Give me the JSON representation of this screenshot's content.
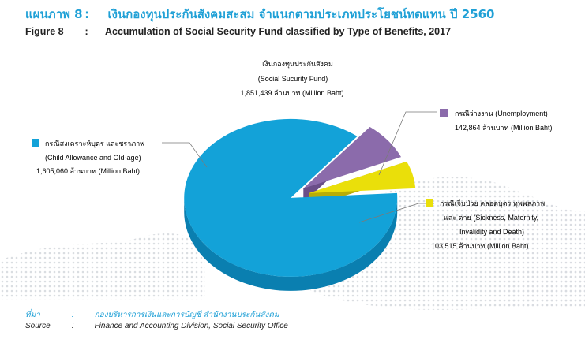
{
  "figure": {
    "th_label": "แผนภาพ 8",
    "th_colon": ":",
    "th_title": "เงินกองทุนประกันสังคมสะสม จำแนกตามประเภทประโยชน์ทดแทน ปี 2560",
    "en_label": "Figure 8",
    "en_colon": ":",
    "en_title": "Accumulation of Social Security Fund classified by Type of Benefits, 2017"
  },
  "chart_data": {
    "type": "pie",
    "style": "3d-exploded",
    "total": {
      "line1": "เงินกองทุนประกันสังคม",
      "line2": "(Social Sucurity Fund)",
      "line3": "1,851,439 ล้านบาท (Million Baht)",
      "value": 1851439
    },
    "unit": "Million Baht",
    "slices": [
      {
        "key": "child_old_age",
        "th": "กรณีสงเคราะห์บุตร และชราภาพ",
        "en": "(Child Allowance and Old-age)",
        "value_text": "1,605,060 ล้านบาท (Million Baht)",
        "value": 1605060,
        "color": "#13a2d8",
        "side_color": "#0a7fb0"
      },
      {
        "key": "unemployment",
        "th": "กรณีว่างงาน (Unemployment)",
        "en": "",
        "value_text": "142,864 ล้านบาท (Million Baht)",
        "value": 142864,
        "color": "#8b6bab",
        "side_color": "#6a4e88"
      },
      {
        "key": "sickness",
        "th": "กรณีเจ็บป่วย คลอดบุตร ทุพพลภาพ",
        "en": "และ ตาย (Sickness, Maternity,",
        "en2": "Invalidity and Death)",
        "value_text": "103,515 ล้านบาท (Million Baht)",
        "value": 103515,
        "color": "#eadf0a",
        "side_color": "#b8ad06"
      }
    ]
  },
  "source": {
    "th_label": "ที่มา",
    "th_colon": ":",
    "th_text": "กองบริหารการเงินและการบัญชี สำนักงานประกันสังคม",
    "en_label": "Source",
    "en_colon": ":",
    "en_text": "Finance and Accounting Division, Social Security Office"
  }
}
